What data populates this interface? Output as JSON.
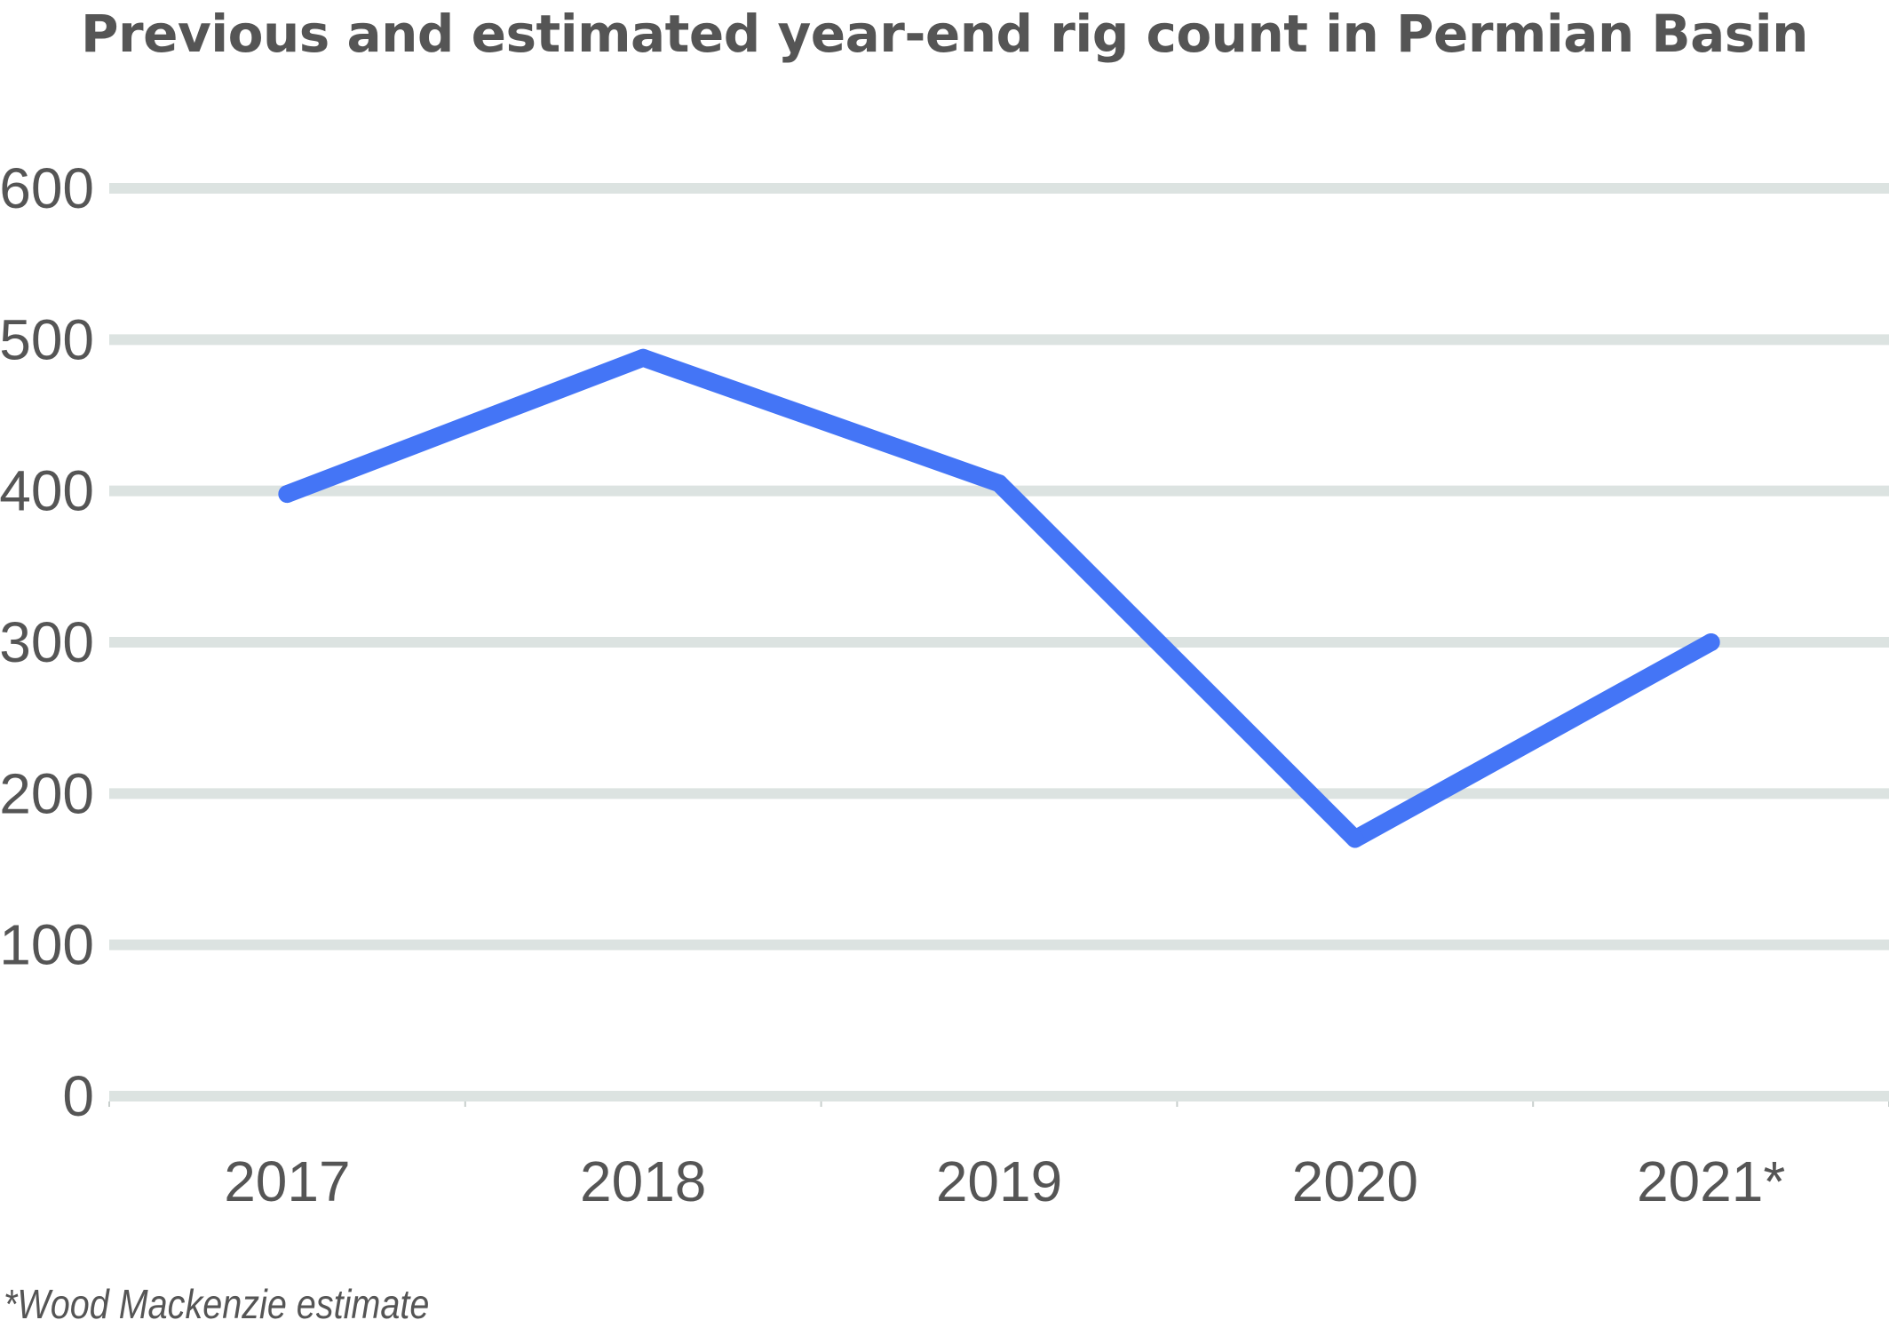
{
  "chart_data": {
    "type": "line",
    "title": "Previous and estimated year-end rig count in Permian Basin",
    "categories": [
      "2017",
      "2018",
      "2019",
      "2020",
      "2021*"
    ],
    "series": [
      {
        "values": [
          398,
          488,
          405,
          170,
          300
        ]
      }
    ],
    "yticks": [
      "0",
      "100",
      "200",
      "300",
      "400",
      "500",
      "600"
    ],
    "ylim": [
      0,
      600
    ],
    "xlabel": "",
    "ylabel": "",
    "grid": true,
    "legend": "none",
    "line_color": "#4475F6",
    "grid_color": "#DCE3E1",
    "text_color": "#555555",
    "footnote": "*Wood Mackenzie estimate"
  }
}
